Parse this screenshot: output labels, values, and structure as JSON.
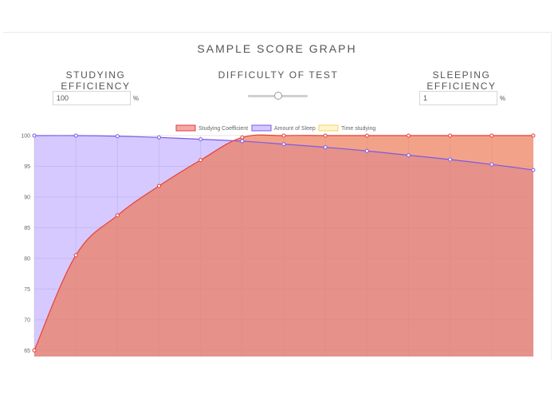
{
  "page": {
    "title": "SAMPLE SCORE GRAPH",
    "studying_label": "STUDYING EFFICIENCY",
    "difficulty_label": "DIFFICULTY OF TEST",
    "sleeping_label": "SLEEPING EFFICIENCY",
    "studying_value": "100",
    "sleeping_value": "1",
    "percent_sign": "%",
    "difficulty_slider_fraction": 0.5
  },
  "colors": {
    "studying_fill": "rgba(229,60,60,0.45)",
    "studying_line": "#e53c3c",
    "sleep_fill": "rgba(150,120,255,0.40)",
    "sleep_line": "#7a5ae6",
    "time_fill": "rgba(255,236,140,0.45)",
    "time_line": "#f1d36a",
    "overlap_fill": "#f9b98b"
  },
  "chart_data": {
    "type": "area",
    "title": "",
    "xlabel": "",
    "ylabel": "",
    "ylim": [
      64,
      100
    ],
    "yticks": [
      65,
      70,
      75,
      80,
      85,
      90,
      95,
      100
    ],
    "x": [
      0,
      1,
      2,
      3,
      4,
      5,
      6,
      7,
      8,
      9,
      10,
      11,
      12
    ],
    "legend": [
      "Studying Coefficient",
      "Amount of Sleep",
      "Time studying"
    ],
    "series": [
      {
        "name": "Studying Coefficient",
        "values": [
          65,
          80.5,
          87,
          91.8,
          96,
          99.7,
          100,
          100,
          100,
          100,
          100,
          100,
          100
        ]
      },
      {
        "name": "Amount of Sleep",
        "values": [
          100,
          100,
          99.9,
          99.7,
          99.4,
          99.1,
          98.6,
          98.1,
          97.5,
          96.8,
          96.1,
          95.3,
          94.4
        ]
      },
      {
        "name": "Time studying",
        "values": [
          65,
          80.5,
          87,
          91.8,
          96,
          99.7,
          100,
          100,
          100,
          100,
          100,
          100,
          100
        ]
      }
    ]
  }
}
